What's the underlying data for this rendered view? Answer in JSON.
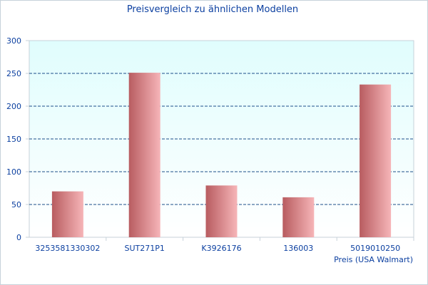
{
  "chart_data": {
    "type": "bar",
    "title": "Preisvergleich zu ähnlichen Modellen",
    "categories": [
      "3253581330302",
      "SUT271P1",
      "K3926176",
      "136003",
      "5019010250"
    ],
    "series": [
      {
        "name": "Preis (USA Walmart)",
        "values": [
          70,
          251,
          79,
          61,
          233
        ]
      }
    ],
    "xlabel": "",
    "ylabel": "",
    "ylim": [
      0,
      300
    ],
    "yticks": [
      0,
      50,
      100,
      150,
      200,
      250,
      300
    ],
    "grid": "horizontal dashed",
    "legend": "bottom-right",
    "colors": {
      "bar_dark": "#b85c60",
      "bar_light": "#f6b5b8",
      "plot_bg_top": "#e0fdfd",
      "plot_bg_bottom": "#ffffff",
      "grid": "#1d4f8a",
      "text": "#0b3fa0"
    }
  }
}
